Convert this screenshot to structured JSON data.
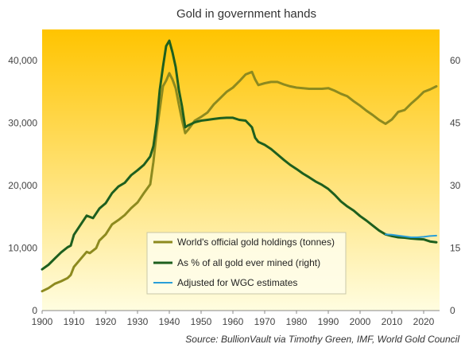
{
  "chart_data": {
    "type": "line",
    "title": "Gold in government  hands",
    "source_label": "Source:",
    "source_text": " BullionVault via Timothy Green, IMF, World Gold Council",
    "x_ticks": [
      "1900",
      "1910",
      "1920",
      "1930",
      "1940",
      "1950",
      "1960",
      "1970",
      "1980",
      "1990",
      "2000",
      "2010",
      "2020"
    ],
    "y_left_ticks": [
      "0",
      "10,000",
      "20,000",
      "30,000",
      "40,000"
    ],
    "y_right_ticks": [
      "0",
      "15",
      "30",
      "45",
      "60"
    ],
    "xlim": [
      1900,
      2025
    ],
    "ylim_left": [
      0,
      45000
    ],
    "ylim_right": [
      0,
      67.5
    ],
    "grid": false,
    "legend_position": "bottom-center",
    "background_gradient": {
      "top": "#ffc400",
      "bottom": "#fffde0"
    },
    "series": [
      {
        "name": "World's official gold holdings (tonnes)",
        "axis": "left",
        "color": "#8d8a1f",
        "points": [
          [
            1900,
            3100
          ],
          [
            1902,
            3600
          ],
          [
            1904,
            4300
          ],
          [
            1906,
            4700
          ],
          [
            1908,
            5200
          ],
          [
            1909,
            5700
          ],
          [
            1910,
            7000
          ],
          [
            1912,
            8200
          ],
          [
            1914,
            9400
          ],
          [
            1915,
            9200
          ],
          [
            1917,
            10000
          ],
          [
            1918,
            11200
          ],
          [
            1920,
            12200
          ],
          [
            1922,
            13800
          ],
          [
            1924,
            14500
          ],
          [
            1926,
            15300
          ],
          [
            1928,
            16400
          ],
          [
            1930,
            17300
          ],
          [
            1932,
            18800
          ],
          [
            1934,
            20200
          ],
          [
            1935,
            23800
          ],
          [
            1936,
            28500
          ],
          [
            1937,
            32200
          ],
          [
            1938,
            35900
          ],
          [
            1939,
            36800
          ],
          [
            1940,
            38000
          ],
          [
            1941,
            37000
          ],
          [
            1942,
            35600
          ],
          [
            1943,
            33000
          ],
          [
            1944,
            30500
          ],
          [
            1945,
            28400
          ],
          [
            1946,
            29000
          ],
          [
            1948,
            30400
          ],
          [
            1950,
            31000
          ],
          [
            1952,
            31700
          ],
          [
            1954,
            33000
          ],
          [
            1956,
            34000
          ],
          [
            1958,
            35000
          ],
          [
            1960,
            35700
          ],
          [
            1962,
            36700
          ],
          [
            1964,
            37800
          ],
          [
            1966,
            38200
          ],
          [
            1967,
            37000
          ],
          [
            1968,
            36100
          ],
          [
            1970,
            36400
          ],
          [
            1972,
            36600
          ],
          [
            1974,
            36600
          ],
          [
            1976,
            36200
          ],
          [
            1978,
            35900
          ],
          [
            1980,
            35700
          ],
          [
            1982,
            35600
          ],
          [
            1984,
            35500
          ],
          [
            1986,
            35500
          ],
          [
            1988,
            35500
          ],
          [
            1990,
            35600
          ],
          [
            1992,
            35200
          ],
          [
            1994,
            34700
          ],
          [
            1996,
            34300
          ],
          [
            1998,
            33500
          ],
          [
            2000,
            32800
          ],
          [
            2002,
            32000
          ],
          [
            2004,
            31300
          ],
          [
            2006,
            30500
          ],
          [
            2008,
            29900
          ],
          [
            2010,
            30600
          ],
          [
            2012,
            31800
          ],
          [
            2014,
            32100
          ],
          [
            2016,
            33100
          ],
          [
            2018,
            34000
          ],
          [
            2020,
            35000
          ],
          [
            2022,
            35400
          ],
          [
            2024,
            35900
          ]
        ]
      },
      {
        "name": "As % of all gold ever mined (right)",
        "axis": "right",
        "color": "#1e5f1e",
        "points": [
          [
            1900,
            9.9
          ],
          [
            1902,
            11.0
          ],
          [
            1904,
            12.5
          ],
          [
            1906,
            14.0
          ],
          [
            1908,
            15.2
          ],
          [
            1909,
            15.6
          ],
          [
            1910,
            18.2
          ],
          [
            1912,
            20.5
          ],
          [
            1914,
            22.8
          ],
          [
            1916,
            22.2
          ],
          [
            1918,
            24.5
          ],
          [
            1920,
            25.8
          ],
          [
            1922,
            28.2
          ],
          [
            1924,
            29.8
          ],
          [
            1926,
            30.7
          ],
          [
            1928,
            32.5
          ],
          [
            1930,
            33.7
          ],
          [
            1932,
            35.0
          ],
          [
            1934,
            37.0
          ],
          [
            1935,
            39.5
          ],
          [
            1936,
            45.0
          ],
          [
            1937,
            53.0
          ],
          [
            1938,
            58.5
          ],
          [
            1939,
            63.5
          ],
          [
            1940,
            64.8
          ],
          [
            1941,
            62.0
          ],
          [
            1942,
            58.5
          ],
          [
            1943,
            53.0
          ],
          [
            1944,
            49.0
          ],
          [
            1945,
            44.0
          ],
          [
            1946,
            44.5
          ],
          [
            1948,
            45.2
          ],
          [
            1950,
            45.6
          ],
          [
            1952,
            45.8
          ],
          [
            1954,
            46.0
          ],
          [
            1956,
            46.2
          ],
          [
            1958,
            46.3
          ],
          [
            1960,
            46.3
          ],
          [
            1962,
            45.8
          ],
          [
            1964,
            45.6
          ],
          [
            1966,
            44.0
          ],
          [
            1967,
            41.5
          ],
          [
            1968,
            40.5
          ],
          [
            1970,
            39.8
          ],
          [
            1972,
            38.8
          ],
          [
            1974,
            37.5
          ],
          [
            1976,
            36.2
          ],
          [
            1978,
            35.0
          ],
          [
            1980,
            34.0
          ],
          [
            1982,
            32.9
          ],
          [
            1984,
            32.0
          ],
          [
            1986,
            31.0
          ],
          [
            1988,
            30.2
          ],
          [
            1990,
            29.2
          ],
          [
            1992,
            27.8
          ],
          [
            1994,
            26.2
          ],
          [
            1996,
            25.0
          ],
          [
            1998,
            24.0
          ],
          [
            2000,
            22.7
          ],
          [
            2002,
            21.6
          ],
          [
            2004,
            20.4
          ],
          [
            2006,
            19.2
          ],
          [
            2008,
            18.3
          ],
          [
            2010,
            17.9
          ],
          [
            2012,
            17.6
          ],
          [
            2014,
            17.5
          ],
          [
            2016,
            17.3
          ],
          [
            2018,
            17.2
          ],
          [
            2020,
            17.1
          ],
          [
            2022,
            16.6
          ],
          [
            2024,
            16.4
          ]
        ]
      },
      {
        "name": "Adjusted for WGC estimates",
        "axis": "right",
        "color": "#2a9fd8",
        "points": [
          [
            2008,
            18.3
          ],
          [
            2010,
            18.2
          ],
          [
            2012,
            18.0
          ],
          [
            2014,
            17.8
          ],
          [
            2016,
            17.6
          ],
          [
            2018,
            17.6
          ],
          [
            2020,
            17.7
          ],
          [
            2022,
            17.9
          ],
          [
            2024,
            18.0
          ]
        ]
      }
    ]
  }
}
